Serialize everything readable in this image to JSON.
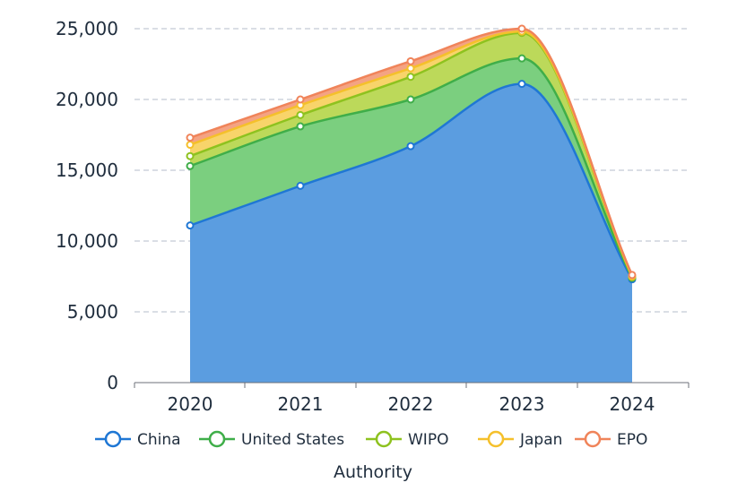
{
  "chart_data": {
    "type": "area",
    "stacked": true,
    "categories": [
      "2020",
      "2021",
      "2022",
      "2023",
      "2024"
    ],
    "series": [
      {
        "name": "China",
        "color": "#1f77d4",
        "fill": "#5b9de0",
        "values": [
          11100,
          13900,
          16700,
          21100,
          7300
        ]
      },
      {
        "name": "United States",
        "color": "#3fae49",
        "fill": "#7bcf7f",
        "values": [
          4200,
          4200,
          3300,
          1800,
          100
        ]
      },
      {
        "name": "WIPO",
        "color": "#8ec21f",
        "fill": "#bcd95a",
        "values": [
          700,
          800,
          1600,
          1800,
          50
        ]
      },
      {
        "name": "Japan",
        "color": "#f5c02b",
        "fill": "#f8d46a",
        "values": [
          800,
          700,
          600,
          100,
          50
        ]
      },
      {
        "name": "EPO",
        "color": "#f0845a",
        "fill": "#f4a383",
        "values": [
          500,
          400,
          500,
          200,
          100
        ]
      }
    ],
    "y_ticks": [
      "0",
      "5,000",
      "10,000",
      "15,000",
      "20,000",
      "25,000"
    ],
    "ylim": [
      0,
      25000
    ],
    "xlabel": "Authority",
    "ylabel": "",
    "grid": true,
    "legend_position": "bottom"
  }
}
